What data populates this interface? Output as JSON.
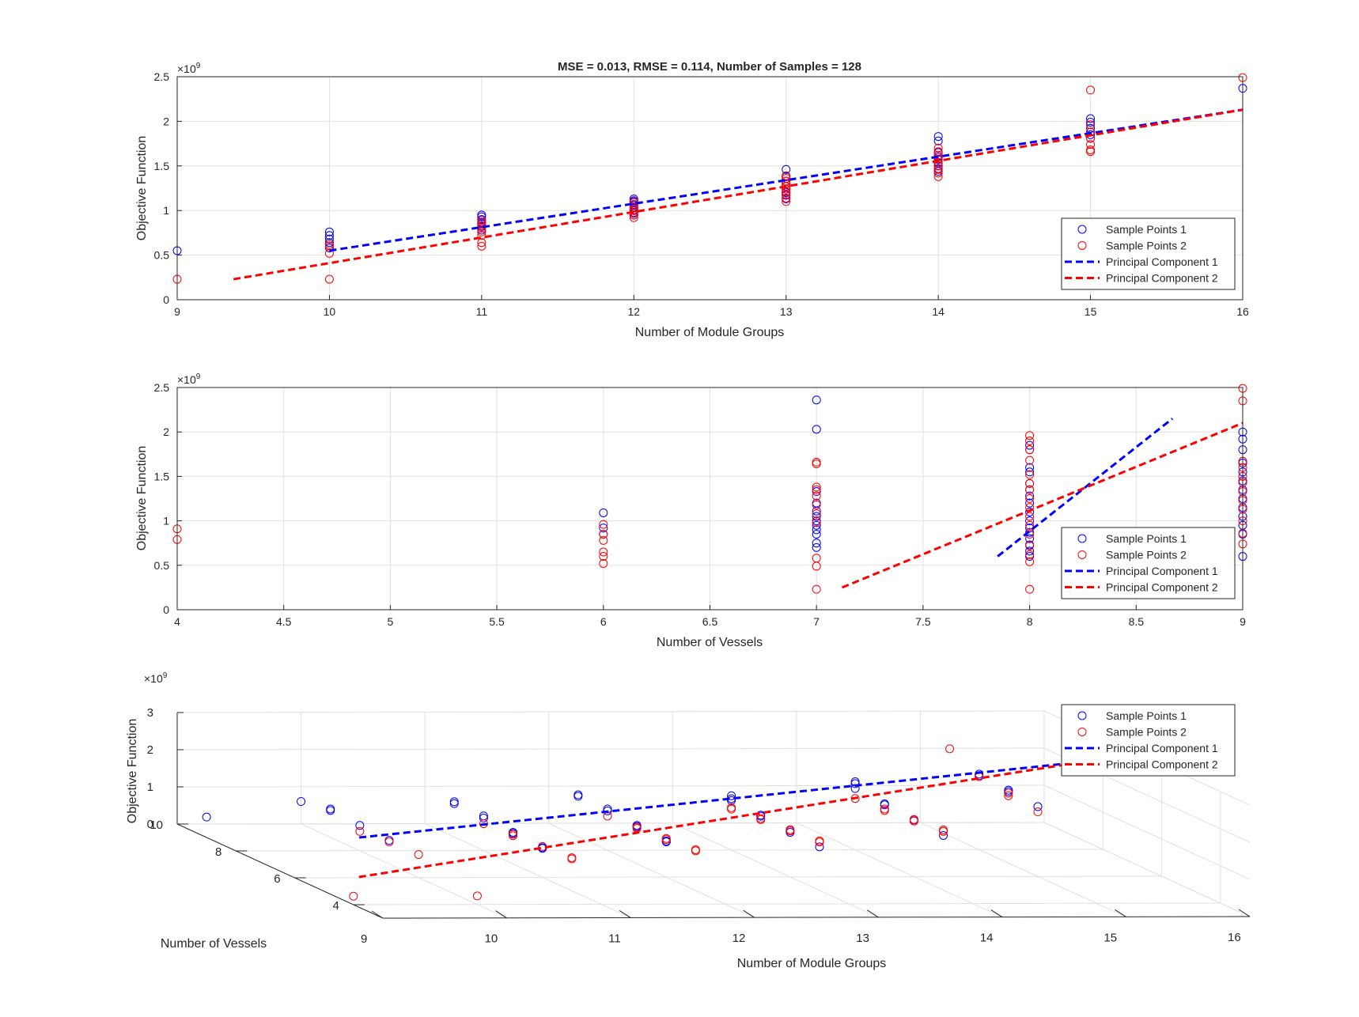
{
  "colors": {
    "series1": "#0000ff",
    "series2": "#ff0000",
    "grid": "#e0e0e0",
    "axis": "#262626"
  },
  "chart_data": [
    {
      "type": "scatter",
      "title": "MSE = 0.013, RMSE = 0.114, Number of Samples = 128",
      "xlabel": "Number of Module Groups",
      "ylabel": "Objective Function",
      "exponent_label": "×10",
      "exponent_power": "9",
      "xlim": [
        9,
        16
      ],
      "ylim": [
        0,
        2.5
      ],
      "xticks": [
        "9",
        "10",
        "11",
        "12",
        "13",
        "14",
        "15",
        "16"
      ],
      "yticks": [
        "0",
        "0.5",
        "1",
        "1.5",
        "2",
        "2.5"
      ],
      "grid": true,
      "legend": "bottom-right",
      "legend_entries": [
        "Sample Points 1",
        "Sample Points 2",
        "Principal Component 1",
        "Principal Component 2"
      ],
      "series": [
        {
          "name": "Sample Points 1",
          "kind": "points",
          "color": "#0000ff",
          "x": [
            9,
            10,
            10,
            10,
            10,
            10,
            11,
            11,
            11,
            11,
            11,
            11,
            11,
            12,
            12,
            12,
            12,
            12,
            12,
            12,
            12,
            13,
            13,
            13,
            13,
            13,
            13,
            13,
            13,
            13,
            14,
            14,
            14,
            14,
            14,
            14,
            14,
            14,
            14,
            15,
            15,
            15,
            15,
            15,
            15,
            15,
            16
          ],
          "y": [
            0.55,
            0.76,
            0.72,
            0.68,
            0.64,
            0.58,
            0.95,
            0.93,
            0.9,
            0.87,
            0.85,
            0.82,
            0.78,
            1.13,
            1.11,
            1.09,
            1.06,
            1.03,
            1.0,
            0.97,
            0.95,
            1.46,
            1.38,
            1.33,
            1.3,
            1.27,
            1.24,
            1.2,
            1.17,
            1.13,
            1.83,
            1.78,
            1.65,
            1.6,
            1.57,
            1.53,
            1.5,
            1.47,
            1.44,
            2.03,
            1.99,
            1.96,
            1.92,
            1.88,
            1.85,
            1.81,
            2.37
          ]
        },
        {
          "name": "Sample Points 2",
          "kind": "points",
          "color": "#ff0000",
          "x": [
            9,
            10,
            10,
            10,
            10,
            11,
            11,
            11,
            11,
            11,
            11,
            11,
            11,
            12,
            12,
            12,
            12,
            12,
            12,
            12,
            13,
            13,
            13,
            13,
            13,
            13,
            13,
            13,
            13,
            13,
            14,
            14,
            14,
            14,
            14,
            14,
            14,
            14,
            14,
            15,
            15,
            15,
            15,
            15,
            15,
            15,
            16
          ],
          "y": [
            0.23,
            0.23,
            0.52,
            0.6,
            0.62,
            0.6,
            0.64,
            0.72,
            0.76,
            0.8,
            0.83,
            0.86,
            0.89,
            0.92,
            0.95,
            0.98,
            1.01,
            1.04,
            1.07,
            1.1,
            1.1,
            1.14,
            1.18,
            1.21,
            1.24,
            1.27,
            1.3,
            1.33,
            1.36,
            1.39,
            1.38,
            1.42,
            1.46,
            1.5,
            1.54,
            1.58,
            1.62,
            1.66,
            1.7,
            2.35,
            1.96,
            1.88,
            1.81,
            1.74,
            1.68,
            1.66,
            2.49
          ]
        },
        {
          "name": "Principal Component 1",
          "kind": "line",
          "color": "#0000ff",
          "x": [
            10,
            16
          ],
          "y": [
            0.55,
            2.13
          ]
        },
        {
          "name": "Principal Component 2",
          "kind": "line",
          "color": "#ff0000",
          "x": [
            9.37,
            16
          ],
          "y": [
            0.23,
            2.13
          ]
        }
      ]
    },
    {
      "type": "scatter",
      "xlabel": "Number of Vessels",
      "ylabel": "Objective Function",
      "exponent_label": "×10",
      "exponent_power": "9",
      "xlim": [
        4,
        9
      ],
      "ylim": [
        0,
        2.5
      ],
      "xticks": [
        "4",
        "4.5",
        "5",
        "5.5",
        "6",
        "6.5",
        "7",
        "7.5",
        "8",
        "8.5",
        "9"
      ],
      "yticks": [
        "0",
        "0.5",
        "1",
        "1.5",
        "2",
        "2.5"
      ],
      "grid": true,
      "legend": "bottom-right",
      "legend_entries": [
        "Sample Points 1",
        "Sample Points 2",
        "Principal Component 1",
        "Principal Component 2"
      ],
      "series": [
        {
          "name": "Sample Points 1",
          "kind": "points",
          "color": "#0000ff",
          "x": [
            6,
            6,
            6,
            7,
            7,
            7,
            7,
            7,
            7,
            7,
            7,
            7,
            7,
            7,
            7,
            8,
            8,
            8,
            8,
            8,
            8,
            8,
            8,
            8,
            8,
            8,
            8,
            8,
            8,
            8,
            8,
            9,
            9,
            9,
            9,
            9,
            9,
            9,
            9,
            9,
            9,
            9,
            9,
            9
          ],
          "y": [
            1.09,
            0.92,
            0.85,
            2.36,
            2.03,
            1.33,
            1.2,
            1.11,
            1.05,
            1.0,
            0.95,
            0.9,
            0.85,
            0.75,
            0.7,
            1.85,
            1.8,
            1.6,
            1.55,
            1.42,
            1.35,
            1.28,
            1.2,
            1.1,
            1.0,
            0.92,
            0.87,
            0.8,
            0.73,
            0.66,
            0.6,
            2.0,
            1.92,
            1.8,
            1.65,
            1.55,
            1.45,
            1.35,
            1.25,
            1.15,
            1.05,
            0.95,
            0.85,
            0.6
          ]
        },
        {
          "name": "Sample Points 2",
          "kind": "points",
          "color": "#ff0000",
          "x": [
            4,
            4,
            6,
            6,
            6,
            6,
            6,
            6,
            7,
            7,
            7,
            7,
            7,
            7,
            7,
            7,
            7,
            7,
            7,
            8,
            8,
            8,
            8,
            8,
            8,
            8,
            8,
            8,
            8,
            8,
            8,
            8,
            8,
            8,
            8,
            9,
            9,
            9,
            9,
            9,
            9,
            9,
            9,
            9,
            9,
            9,
            9
          ],
          "y": [
            0.91,
            0.79,
            0.96,
            0.85,
            0.78,
            0.65,
            0.6,
            0.52,
            1.66,
            1.64,
            1.38,
            1.35,
            1.28,
            1.18,
            1.08,
            0.98,
            0.58,
            0.49,
            0.23,
            1.96,
            1.9,
            1.8,
            1.68,
            1.52,
            1.42,
            1.35,
            1.25,
            1.15,
            1.05,
            0.95,
            0.85,
            0.72,
            0.62,
            0.54,
            0.23,
            2.49,
            2.35,
            1.67,
            1.6,
            1.5,
            1.43,
            1.33,
            1.23,
            1.13,
            1.0,
            0.86,
            0.74
          ]
        },
        {
          "name": "Principal Component 1",
          "kind": "line",
          "color": "#0000ff",
          "x": [
            7.85,
            8.67
          ],
          "y": [
            0.6,
            2.15
          ]
        },
        {
          "name": "Principal Component 2",
          "kind": "line",
          "color": "#ff0000",
          "x": [
            7.12,
            9
          ],
          "y": [
            0.25,
            2.1
          ]
        }
      ]
    },
    {
      "type": "scatter",
      "projection": "3d",
      "xlabel": "Number of Module Groups",
      "ylabel": "Number of Vessels",
      "zlabel": "Objective Function",
      "exponent_label": "×10",
      "exponent_power": "9",
      "xlim": [
        9,
        16
      ],
      "ylim": [
        3,
        10
      ],
      "zlim": [
        0,
        3
      ],
      "xticks": [
        "9",
        "10",
        "11",
        "12",
        "13",
        "14",
        "15",
        "16"
      ],
      "yticks": [
        "4",
        "6",
        "8",
        "10"
      ],
      "zticks": [
        "0",
        "1",
        "2",
        "3"
      ],
      "grid": true,
      "legend": "top-right",
      "legend_entries": [
        "Sample Points 1",
        "Sample Points 2",
        "Principal Component 1",
        "Principal Component 2"
      ],
      "series": [
        {
          "name": "Sample Points 1",
          "kind": "points",
          "color": "#0000ff",
          "x": [
            9,
            10,
            10,
            10,
            10,
            10,
            11,
            11,
            11,
            11,
            11,
            11,
            11,
            11,
            12,
            12,
            12,
            12,
            12,
            12,
            12,
            12,
            13,
            13,
            13,
            13,
            13,
            13,
            13,
            13,
            14,
            14,
            14,
            14,
            14,
            14,
            14,
            14,
            15,
            15,
            15,
            15,
            15,
            16
          ],
          "y": [
            9,
            10,
            9,
            9,
            8,
            7,
            9,
            9,
            8,
            8,
            7,
            7,
            6,
            6,
            9,
            9,
            8,
            8,
            7,
            7,
            6,
            6,
            8,
            8,
            8,
            7,
            7,
            6,
            6,
            5,
            8,
            8,
            8,
            7,
            7,
            6,
            6,
            5,
            8,
            8,
            7,
            7,
            6,
            9
          ],
          "z": [
            0.55,
            0.6,
            0.72,
            0.76,
            0.68,
            0.64,
            0.95,
            0.9,
            0.93,
            0.87,
            0.85,
            0.82,
            0.78,
            0.8,
            1.13,
            1.09,
            1.11,
            1.06,
            1.03,
            1.0,
            0.97,
            0.95,
            1.46,
            1.38,
            1.33,
            1.3,
            1.27,
            1.24,
            1.2,
            1.17,
            1.83,
            1.78,
            1.65,
            1.6,
            1.57,
            1.53,
            1.5,
            1.47,
            2.03,
            1.99,
            1.96,
            1.92,
            1.88,
            2.37
          ]
        },
        {
          "name": "Sample Points 2",
          "kind": "points",
          "color": "#ff0000",
          "x": [
            9,
            10,
            10,
            10,
            10,
            11,
            11,
            11,
            11,
            11,
            11,
            12,
            12,
            12,
            12,
            12,
            12,
            12,
            13,
            13,
            13,
            13,
            13,
            13,
            13,
            13,
            14,
            14,
            14,
            14,
            14,
            14,
            14,
            15,
            15,
            15,
            15,
            15,
            16
          ],
          "y": [
            4,
            4,
            8,
            7,
            6,
            8,
            7,
            7,
            6,
            5,
            5,
            8,
            7,
            7,
            6,
            6,
            5,
            5,
            8,
            8,
            7,
            7,
            6,
            6,
            5,
            5,
            8,
            7,
            7,
            6,
            6,
            5,
            5,
            9,
            8,
            7,
            7,
            6,
            9
          ],
          "z": [
            0.23,
            0.23,
            0.52,
            0.6,
            0.62,
            0.72,
            0.76,
            0.8,
            0.83,
            0.86,
            0.89,
            0.92,
            0.95,
            0.98,
            1.01,
            1.04,
            1.07,
            1.1,
            1.1,
            1.14,
            1.18,
            1.21,
            1.24,
            1.27,
            1.3,
            1.33,
            1.38,
            1.42,
            1.46,
            1.5,
            1.54,
            1.58,
            1.62,
            2.35,
            1.96,
            1.88,
            1.81,
            1.74,
            2.49
          ]
        },
        {
          "name": "Principal Component 1",
          "kind": "line",
          "color": "#0000ff",
          "x": [
            9.9,
            16
          ],
          "y": [
            7.6,
            8.7
          ],
          "z": [
            0.5,
            2.1
          ]
        },
        {
          "name": "Principal Component 2",
          "kind": "line",
          "color": "#ff0000",
          "x": [
            9.4,
            16
          ],
          "y": [
            5.5,
            8.7
          ],
          "z": [
            0.2,
            2.1
          ]
        }
      ]
    }
  ]
}
